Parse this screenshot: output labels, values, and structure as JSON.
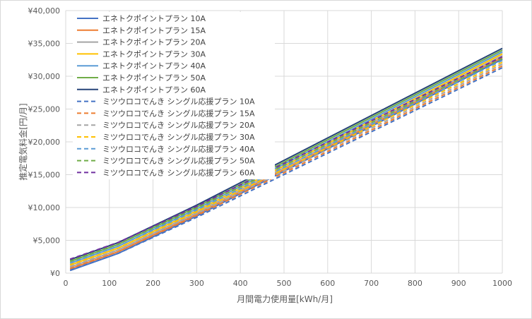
{
  "chart_data": {
    "type": "line",
    "title": "",
    "xlabel": "月間電力使用量[kWh/月]",
    "ylabel": "推定電気料金[円/月]",
    "xlim": [
      0,
      1000
    ],
    "ylim": [
      0,
      40000
    ],
    "x_ticks": [
      0,
      100,
      200,
      300,
      400,
      500,
      600,
      700,
      800,
      900,
      1000
    ],
    "y_ticks": [
      0,
      5000,
      10000,
      15000,
      20000,
      25000,
      30000,
      35000,
      40000
    ],
    "y_tick_labels": [
      "¥0",
      "¥5,000",
      "¥10,000",
      "¥15,000",
      "¥20,000",
      "¥25,000",
      "¥30,000",
      "¥35,000",
      "¥40,000"
    ],
    "grid": true,
    "legend_position": "top-left",
    "x": [
      10,
      120,
      300,
      1000
    ],
    "series": [
      {
        "name": "エネトクポイントプラン 10A",
        "color": "#4472c4",
        "dash": false,
        "values": [
          400,
          3000,
          8700,
          32600
        ]
      },
      {
        "name": "エネトクポイントプラン 15A",
        "color": "#ed7d31",
        "dash": false,
        "values": [
          660,
          3260,
          8960,
          32860
        ]
      },
      {
        "name": "エネトクポイントプラン 20A",
        "color": "#a5a5a5",
        "dash": false,
        "values": [
          930,
          3530,
          9230,
          33130
        ]
      },
      {
        "name": "エネトクポイントプラン 30A",
        "color": "#ffc000",
        "dash": false,
        "values": [
          1210,
          3810,
          9510,
          33410
        ]
      },
      {
        "name": "エネトクポイントプラン 40A",
        "color": "#5b9bd5",
        "dash": false,
        "values": [
          1490,
          4090,
          9790,
          33690
        ]
      },
      {
        "name": "エネトクポイントプラン 50A",
        "color": "#70ad47",
        "dash": false,
        "values": [
          1770,
          4370,
          10070,
          33970
        ]
      },
      {
        "name": "エネトクポイントプラン 60A",
        "color": "#264478",
        "dash": false,
        "values": [
          2050,
          4650,
          10350,
          34250
        ]
      },
      {
        "name": "ミツウロコでんき シングル応援プラン 10A",
        "color": "#4472c4",
        "dash": true,
        "values": [
          450,
          3000,
          8500,
          31300
        ]
      },
      {
        "name": "ミツウロコでんき シングル応援プラン 15A",
        "color": "#ed7d31",
        "dash": true,
        "values": [
          720,
          3270,
          8770,
          31570
        ]
      },
      {
        "name": "ミツウロコでんき シングル応援プラン 20A",
        "color": "#a5a5a5",
        "dash": true,
        "values": [
          1000,
          3550,
          9050,
          31850
        ]
      },
      {
        "name": "ミツウロコでんき シングル応援プラン 30A",
        "color": "#ffc000",
        "dash": true,
        "values": [
          1280,
          3830,
          9330,
          32130
        ]
      },
      {
        "name": "ミツウロコでんき シングル応援プラン 40A",
        "color": "#5b9bd5",
        "dash": true,
        "values": [
          1560,
          4110,
          9610,
          32410
        ]
      },
      {
        "name": "ミツウロコでんき シングル応援プラン 50A",
        "color": "#70ad47",
        "dash": true,
        "values": [
          1850,
          4400,
          9900,
          32700
        ]
      },
      {
        "name": "ミツウロコでんき シングル応援プラン 60A",
        "color": "#7030a0",
        "dash": true,
        "values": [
          2130,
          4680,
          10180,
          32980
        ]
      }
    ]
  }
}
